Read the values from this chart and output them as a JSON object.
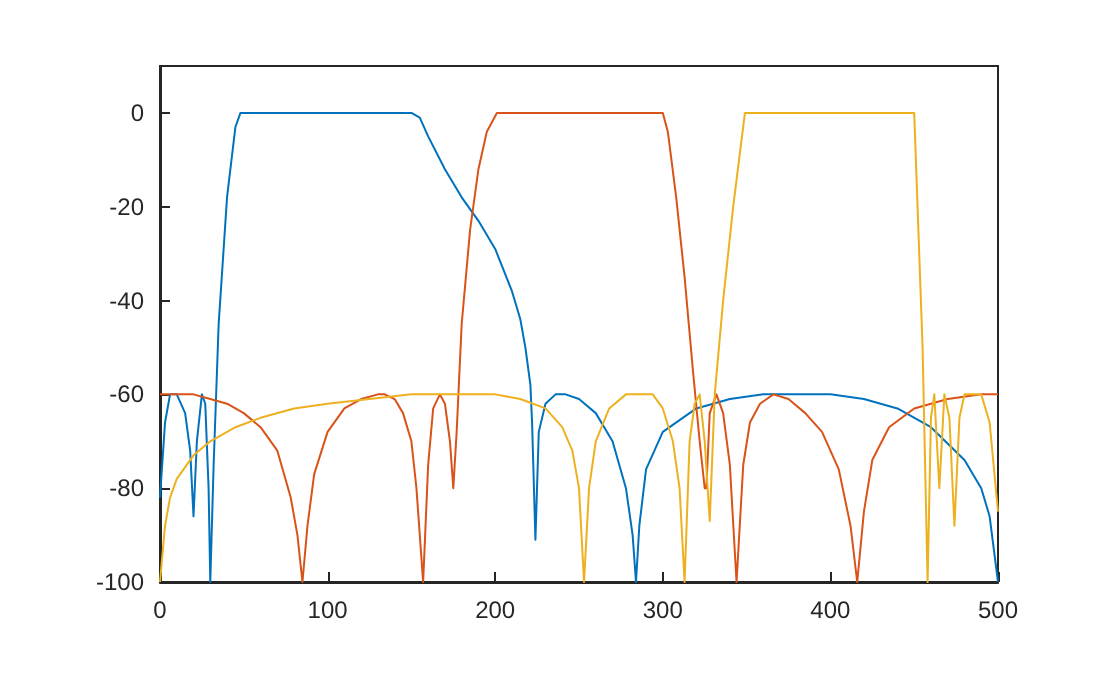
{
  "chart_data": {
    "type": "line",
    "xlim": [
      0,
      500
    ],
    "ylim": [
      -100,
      10
    ],
    "xticks": [
      0,
      100,
      200,
      300,
      400,
      500
    ],
    "yticks": [
      -100,
      -80,
      -60,
      -40,
      -20,
      0
    ],
    "grid": false,
    "marker": "none",
    "line_style": "solid",
    "series": [
      {
        "color": "#0072bd",
        "x": [
          0,
          3,
          6,
          10,
          15,
          18,
          20,
          22,
          25,
          27,
          29,
          30,
          32,
          35,
          40,
          45,
          48,
          60,
          100,
          150,
          155,
          160,
          170,
          180,
          190,
          200,
          210,
          215,
          218,
          221,
          222,
          224,
          226,
          230,
          236,
          242,
          250,
          260,
          270,
          278,
          282,
          284,
          286,
          290,
          300,
          320,
          340,
          360,
          380,
          400,
          420,
          440,
          460,
          480,
          490,
          495,
          500
        ],
        "values": [
          -82,
          -66,
          -60,
          -60,
          -64,
          -72,
          -86,
          -70,
          -60,
          -62,
          -80,
          -100,
          -75,
          -45,
          -18,
          -3,
          0,
          0,
          0,
          0,
          -1,
          -5,
          -12,
          -18,
          -23,
          -29,
          -38,
          -44,
          -50,
          -58,
          -66,
          -91,
          -68,
          -62,
          -60,
          -60,
          -61,
          -64,
          -70,
          -80,
          -90,
          -100,
          -88,
          -76,
          -68,
          -63,
          -61,
          -60,
          -60,
          -60,
          -61,
          -63,
          -67,
          -74,
          -80,
          -86,
          -100
        ]
      },
      {
        "color": "#d95319",
        "x": [
          0,
          10,
          20,
          30,
          40,
          50,
          60,
          70,
          78,
          82,
          85,
          88,
          92,
          100,
          110,
          120,
          130,
          134,
          140,
          145,
          150,
          153,
          157,
          160,
          163,
          167,
          170,
          173,
          175,
          177,
          180,
          185,
          190,
          195,
          201,
          220,
          260,
          300,
          303,
          308,
          313,
          318,
          322,
          325,
          326,
          328,
          332,
          336,
          340,
          344,
          348,
          352,
          358,
          366,
          375,
          385,
          395,
          405,
          412,
          416,
          420,
          425,
          435,
          450,
          470,
          490,
          500
        ],
        "values": [
          -60,
          -60,
          -60,
          -61,
          -62,
          -64,
          -67,
          -72,
          -82,
          -90,
          -100,
          -88,
          -77,
          -68,
          -63,
          -61,
          -60,
          -60,
          -61,
          -64,
          -70,
          -80,
          -100,
          -75,
          -63,
          -60,
          -62,
          -70,
          -80,
          -68,
          -45,
          -25,
          -12,
          -4,
          0,
          0,
          0,
          0,
          -4,
          -18,
          -35,
          -55,
          -70,
          -80,
          -80,
          -64,
          -60,
          -64,
          -75,
          -100,
          -75,
          -66,
          -62,
          -60,
          -61,
          -64,
          -68,
          -76,
          -88,
          -100,
          -85,
          -74,
          -67,
          -63,
          -61,
          -60,
          -60
        ]
      },
      {
        "color": "#edb120",
        "x": [
          0,
          3,
          6,
          10,
          20,
          30,
          45,
          60,
          80,
          100,
          125,
          150,
          180,
          200,
          215,
          230,
          240,
          246,
          250,
          253,
          256,
          260,
          268,
          278,
          288,
          294,
          300,
          306,
          310,
          313,
          316,
          319,
          322,
          325,
          328,
          331,
          336,
          342,
          349,
          380,
          420,
          450,
          452,
          455,
          458,
          460,
          462,
          465,
          468,
          471,
          474,
          477,
          480,
          485,
          490,
          495,
          500
        ],
        "values": [
          -100,
          -88,
          -82,
          -78,
          -73,
          -70,
          -67,
          -65,
          -63,
          -62,
          -61,
          -60,
          -60,
          -60,
          -61,
          -63,
          -67,
          -72,
          -80,
          -100,
          -80,
          -70,
          -63,
          -60,
          -60,
          -60,
          -63,
          -70,
          -80,
          -100,
          -70,
          -62,
          -60,
          -70,
          -87,
          -60,
          -40,
          -20,
          0,
          0,
          0,
          0,
          -20,
          -50,
          -100,
          -65,
          -60,
          -80,
          -60,
          -65,
          -88,
          -65,
          -60,
          -60,
          -60,
          -66,
          -85
        ]
      }
    ]
  }
}
